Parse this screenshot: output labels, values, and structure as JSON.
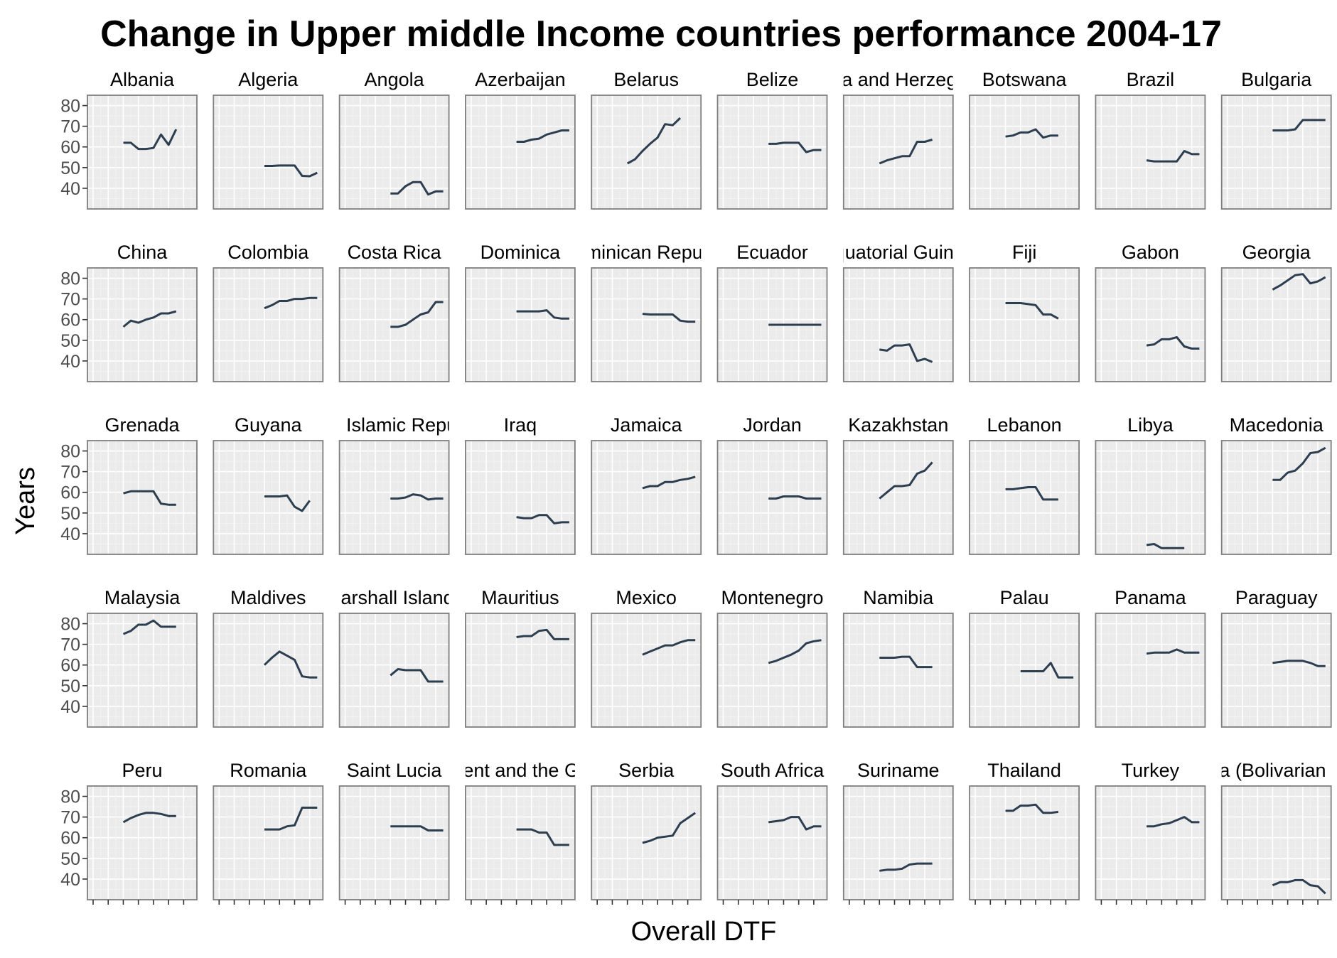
{
  "title": "Change in Upper middle Income countries performance 2004-17",
  "colors": {
    "line": "#2c3e50",
    "panel_bg": "#ebebeb",
    "panel_border": "#7f7f7f",
    "grid_major": "#ffffff",
    "grid_minor": "#f2f2f2",
    "text": "#000000",
    "tick_text": "#4d4d4d"
  },
  "chart_data": {
    "type": "line",
    "title": "Change in Upper middle Income countries performance 2004-17",
    "xlabel": "Overall DTF",
    "ylabel": "Years",
    "facet_layout": {
      "rows": 5,
      "cols": 10
    },
    "x": [
      "2004",
      "2005",
      "2006",
      "2007",
      "2008",
      "2009",
      "2010",
      "2011",
      "2012",
      "2013",
      "2014",
      "2015",
      "2016",
      "2017"
    ],
    "ylim": [
      30,
      85
    ],
    "yticks": [
      40,
      50,
      60,
      70,
      80
    ],
    "grid": true,
    "x_tick_labels_shown": false,
    "series": [
      {
        "name": "Albania",
        "values": [
          null,
          null,
          null,
          null,
          62,
          62,
          59,
          59,
          59.5,
          66,
          61,
          68.5,
          null,
          null
        ]
      },
      {
        "name": "Algeria",
        "values": [
          null,
          null,
          null,
          null,
          null,
          null,
          50.8,
          50.8,
          51,
          51,
          51,
          46,
          45.8,
          47.5
        ]
      },
      {
        "name": "Angola",
        "values": [
          null,
          null,
          null,
          null,
          null,
          null,
          37.5,
          37.5,
          41,
          43,
          43,
          37,
          38.5,
          38.5
        ]
      },
      {
        "name": "Azerbaijan",
        "values": [
          null,
          null,
          null,
          null,
          null,
          null,
          62.5,
          62.5,
          63.5,
          64,
          66,
          67,
          68,
          68
        ]
      },
      {
        "name": "Belarus",
        "values": [
          null,
          null,
          null,
          null,
          52,
          54,
          58,
          61.5,
          64.5,
          71,
          70.5,
          74,
          null,
          null
        ]
      },
      {
        "name": "Belize",
        "values": [
          null,
          null,
          null,
          null,
          null,
          null,
          61.5,
          61.5,
          62,
          62,
          62,
          57.5,
          58.5,
          58.5
        ]
      },
      {
        "name": "Bosnia and Herzegovina",
        "values": [
          null,
          null,
          null,
          null,
          52,
          53.5,
          54.5,
          55.5,
          55.5,
          62.5,
          62.5,
          63.5,
          null,
          null
        ]
      },
      {
        "name": "Botswana",
        "values": [
          null,
          null,
          null,
          null,
          65,
          65.5,
          67,
          67,
          68.5,
          64.5,
          65.5,
          65.5,
          null,
          null
        ]
      },
      {
        "name": "Brazil",
        "values": [
          null,
          null,
          null,
          null,
          null,
          null,
          53.5,
          53,
          53,
          53,
          53,
          58,
          56.5,
          56.5
        ]
      },
      {
        "name": "Bulgaria",
        "values": [
          null,
          null,
          null,
          null,
          null,
          null,
          68,
          68,
          68,
          68.5,
          73,
          73,
          73,
          73
        ]
      },
      {
        "name": "China",
        "values": [
          null,
          null,
          null,
          null,
          56.5,
          59.5,
          58.5,
          60,
          61,
          63,
          63,
          64,
          null,
          null
        ]
      },
      {
        "name": "Colombia",
        "values": [
          null,
          null,
          null,
          null,
          null,
          null,
          65.5,
          67,
          69,
          69,
          70,
          70,
          70.5,
          70.5
        ]
      },
      {
        "name": "Costa Rica",
        "values": [
          null,
          null,
          null,
          null,
          null,
          null,
          56.5,
          56.5,
          57.5,
          60,
          62.5,
          63.5,
          68.5,
          68.5
        ]
      },
      {
        "name": "Dominica",
        "values": [
          null,
          null,
          null,
          null,
          null,
          null,
          64,
          64,
          64,
          64,
          64.5,
          61,
          60.5,
          60.5
        ]
      },
      {
        "name": "Dominican Republic",
        "values": [
          null,
          null,
          null,
          null,
          null,
          null,
          62.8,
          62.5,
          62.5,
          62.5,
          62.5,
          59.5,
          59,
          59
        ]
      },
      {
        "name": "Ecuador",
        "values": [
          null,
          null,
          null,
          null,
          null,
          null,
          57.5,
          57.5,
          57.5,
          57.5,
          57.5,
          57.5,
          57.5,
          57.5
        ]
      },
      {
        "name": "Equatorial Guinea",
        "values": [
          null,
          null,
          null,
          null,
          45.5,
          45,
          47.5,
          47.5,
          48,
          40,
          41,
          39.5,
          null,
          null
        ]
      },
      {
        "name": "Fiji",
        "values": [
          null,
          null,
          null,
          null,
          68,
          68,
          68,
          67.5,
          67,
          62.5,
          62.5,
          60.5,
          null,
          null
        ]
      },
      {
        "name": "Gabon",
        "values": [
          null,
          null,
          null,
          null,
          null,
          null,
          47.5,
          48,
          50.5,
          50.5,
          51.5,
          47,
          46,
          46
        ]
      },
      {
        "name": "Georgia",
        "values": [
          null,
          null,
          null,
          null,
          null,
          null,
          74.5,
          76.5,
          79,
          81.5,
          82,
          77.5,
          78.5,
          80.5
        ]
      },
      {
        "name": "Grenada",
        "values": [
          null,
          null,
          null,
          null,
          59.5,
          60.5,
          60.5,
          60.5,
          60.5,
          54.5,
          54,
          54,
          null,
          null
        ]
      },
      {
        "name": "Guyana",
        "values": [
          null,
          null,
          null,
          null,
          null,
          null,
          58,
          58,
          58,
          58.5,
          53,
          51,
          56,
          null
        ]
      },
      {
        "name": "Iran, Islamic Republic",
        "values": [
          null,
          null,
          null,
          null,
          null,
          null,
          57,
          57,
          57.5,
          59,
          58.5,
          56.5,
          57,
          57
        ]
      },
      {
        "name": "Iraq",
        "values": [
          null,
          null,
          null,
          null,
          null,
          null,
          48,
          47.5,
          47.5,
          49,
          49,
          45,
          45.5,
          45.5
        ]
      },
      {
        "name": "Jamaica",
        "values": [
          null,
          null,
          null,
          null,
          null,
          null,
          62,
          63,
          63,
          65,
          65,
          66,
          66.5,
          67.5
        ]
      },
      {
        "name": "Jordan",
        "values": [
          null,
          null,
          null,
          null,
          null,
          null,
          57,
          57,
          58,
          58,
          58,
          57,
          57,
          57
        ]
      },
      {
        "name": "Kazakhstan",
        "values": [
          null,
          null,
          null,
          null,
          57,
          60,
          63,
          63,
          63.5,
          69,
          70.5,
          74.5,
          null,
          null
        ]
      },
      {
        "name": "Lebanon",
        "values": [
          null,
          null,
          null,
          null,
          61.5,
          61.5,
          62,
          62.5,
          62.5,
          56.5,
          56.5,
          56.5,
          null,
          null
        ]
      },
      {
        "name": "Libya",
        "values": [
          null,
          null,
          null,
          null,
          null,
          null,
          34.5,
          35,
          33,
          33,
          33,
          33,
          null,
          null
        ]
      },
      {
        "name": "Macedonia",
        "values": [
          null,
          null,
          null,
          null,
          null,
          null,
          66,
          66,
          69.5,
          70.5,
          74,
          79,
          79.5,
          81.5
        ]
      },
      {
        "name": "Malaysia",
        "values": [
          null,
          null,
          null,
          null,
          75,
          76.5,
          79.5,
          79.5,
          81.5,
          78.5,
          78.5,
          78.5,
          null,
          null
        ]
      },
      {
        "name": "Maldives",
        "values": [
          null,
          null,
          null,
          null,
          null,
          null,
          60,
          63.5,
          66.5,
          64.5,
          62.5,
          54.5,
          54,
          54
        ]
      },
      {
        "name": "Marshall Islands",
        "values": [
          null,
          null,
          null,
          null,
          null,
          null,
          55,
          58,
          57.5,
          57.5,
          57.5,
          52,
          52,
          52
        ]
      },
      {
        "name": "Mauritius",
        "values": [
          null,
          null,
          null,
          null,
          null,
          null,
          73.5,
          74,
          74,
          76.5,
          77,
          72.5,
          72.5,
          72.5
        ]
      },
      {
        "name": "Mexico",
        "values": [
          null,
          null,
          null,
          null,
          null,
          null,
          65,
          66.5,
          68,
          69.5,
          69.5,
          71,
          72,
          72
        ]
      },
      {
        "name": "Montenegro",
        "values": [
          null,
          null,
          null,
          null,
          null,
          null,
          61,
          62,
          63.5,
          65,
          67,
          70.5,
          71.5,
          72
        ]
      },
      {
        "name": "Namibia",
        "values": [
          null,
          null,
          null,
          null,
          63.5,
          63.5,
          63.5,
          64,
          64,
          59,
          59,
          59,
          null,
          null
        ]
      },
      {
        "name": "Palau",
        "values": [
          null,
          null,
          null,
          null,
          null,
          null,
          57,
          57,
          57,
          57,
          61,
          54,
          54,
          54
        ]
      },
      {
        "name": "Panama",
        "values": [
          null,
          null,
          null,
          null,
          null,
          null,
          65.5,
          66,
          66,
          66,
          67.5,
          66,
          66,
          66
        ]
      },
      {
        "name": "Paraguay",
        "values": [
          null,
          null,
          null,
          null,
          null,
          null,
          61,
          61.5,
          62,
          62,
          62,
          61,
          59.5,
          59.5
        ]
      },
      {
        "name": "Peru",
        "values": [
          null,
          null,
          null,
          null,
          67.5,
          69.5,
          71,
          72,
          72,
          71.5,
          70.5,
          70.5,
          null,
          null
        ]
      },
      {
        "name": "Romania",
        "values": [
          null,
          null,
          null,
          null,
          null,
          null,
          64,
          64,
          64,
          65.5,
          66,
          74.5,
          74.5,
          74.5
        ]
      },
      {
        "name": "Saint Lucia",
        "values": [
          null,
          null,
          null,
          null,
          null,
          null,
          65.5,
          65.5,
          65.5,
          65.5,
          65.5,
          63.5,
          63.5,
          63.5
        ]
      },
      {
        "name": "Saint Vincent and the Grenadines",
        "values": [
          null,
          null,
          null,
          null,
          null,
          null,
          64,
          64,
          64,
          62.5,
          62.5,
          56.5,
          56.5,
          56.5
        ]
      },
      {
        "name": "Serbia",
        "values": [
          null,
          null,
          null,
          null,
          null,
          null,
          57.5,
          58.5,
          60,
          60.5,
          61,
          67,
          69.5,
          72
        ]
      },
      {
        "name": "South Africa",
        "values": [
          null,
          null,
          null,
          null,
          null,
          null,
          67.5,
          68,
          68.5,
          70,
          70,
          64,
          65.5,
          65.5
        ]
      },
      {
        "name": "Suriname",
        "values": [
          null,
          null,
          null,
          null,
          44,
          44.5,
          44.5,
          45,
          47,
          47.5,
          47.5,
          47.5,
          null,
          null
        ]
      },
      {
        "name": "Thailand",
        "values": [
          null,
          null,
          null,
          null,
          73,
          73,
          75.5,
          75.5,
          76,
          72,
          72,
          72.5,
          null,
          null
        ]
      },
      {
        "name": "Turkey",
        "values": [
          null,
          null,
          null,
          null,
          null,
          null,
          65.5,
          65.5,
          66.5,
          67,
          68.5,
          70,
          67.5,
          67.5
        ]
      },
      {
        "name": "Venezuela (Bolivarian Republic)",
        "values": [
          null,
          null,
          null,
          null,
          null,
          null,
          37,
          38.5,
          38.5,
          39.5,
          39.5,
          37,
          36.5,
          33
        ]
      }
    ]
  }
}
